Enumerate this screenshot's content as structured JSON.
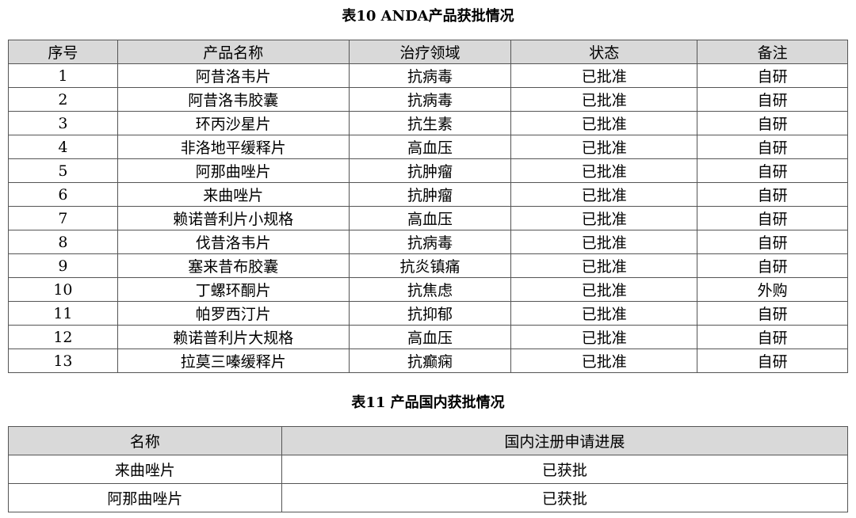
{
  "table10": {
    "title": "表10  ANDA产品获批情况",
    "headers": [
      "序号",
      "产品名称",
      "治疗领域",
      "状态",
      "备注"
    ],
    "rows": [
      [
        "1",
        "阿昔洛韦片",
        "抗病毒",
        "已批准",
        "自研"
      ],
      [
        "2",
        "阿昔洛韦胶囊",
        "抗病毒",
        "已批准",
        "自研"
      ],
      [
        "3",
        "环丙沙星片",
        "抗生素",
        "已批准",
        "自研"
      ],
      [
        "4",
        "非洛地平缓释片",
        "高血压",
        "已批准",
        "自研"
      ],
      [
        "5",
        "阿那曲唑片",
        "抗肿瘤",
        "已批准",
        "自研"
      ],
      [
        "6",
        "来曲唑片",
        "抗肿瘤",
        "已批准",
        "自研"
      ],
      [
        "7",
        "赖诺普利片小规格",
        "高血压",
        "已批准",
        "自研"
      ],
      [
        "8",
        "伐昔洛韦片",
        "抗病毒",
        "已批准",
        "自研"
      ],
      [
        "9",
        "塞来昔布胶囊",
        "抗炎镇痛",
        "已批准",
        "自研"
      ],
      [
        "10",
        "丁螺环酮片",
        "抗焦虑",
        "已批准",
        "外购"
      ],
      [
        "11",
        "帕罗西汀片",
        "抗抑郁",
        "已批准",
        "自研"
      ],
      [
        "12",
        "赖诺普利片大规格",
        "高血压",
        "已批准",
        "自研"
      ],
      [
        "13",
        "拉莫三嗪缓释片",
        "抗癫痫",
        "已批准",
        "自研"
      ]
    ]
  },
  "table11": {
    "title": "表11  产品国内获批情况",
    "headers": [
      "名称",
      "国内注册申请进展"
    ],
    "rows": [
      [
        "来曲唑片",
        "已获批"
      ],
      [
        "阿那曲唑片",
        "已获批"
      ]
    ]
  }
}
